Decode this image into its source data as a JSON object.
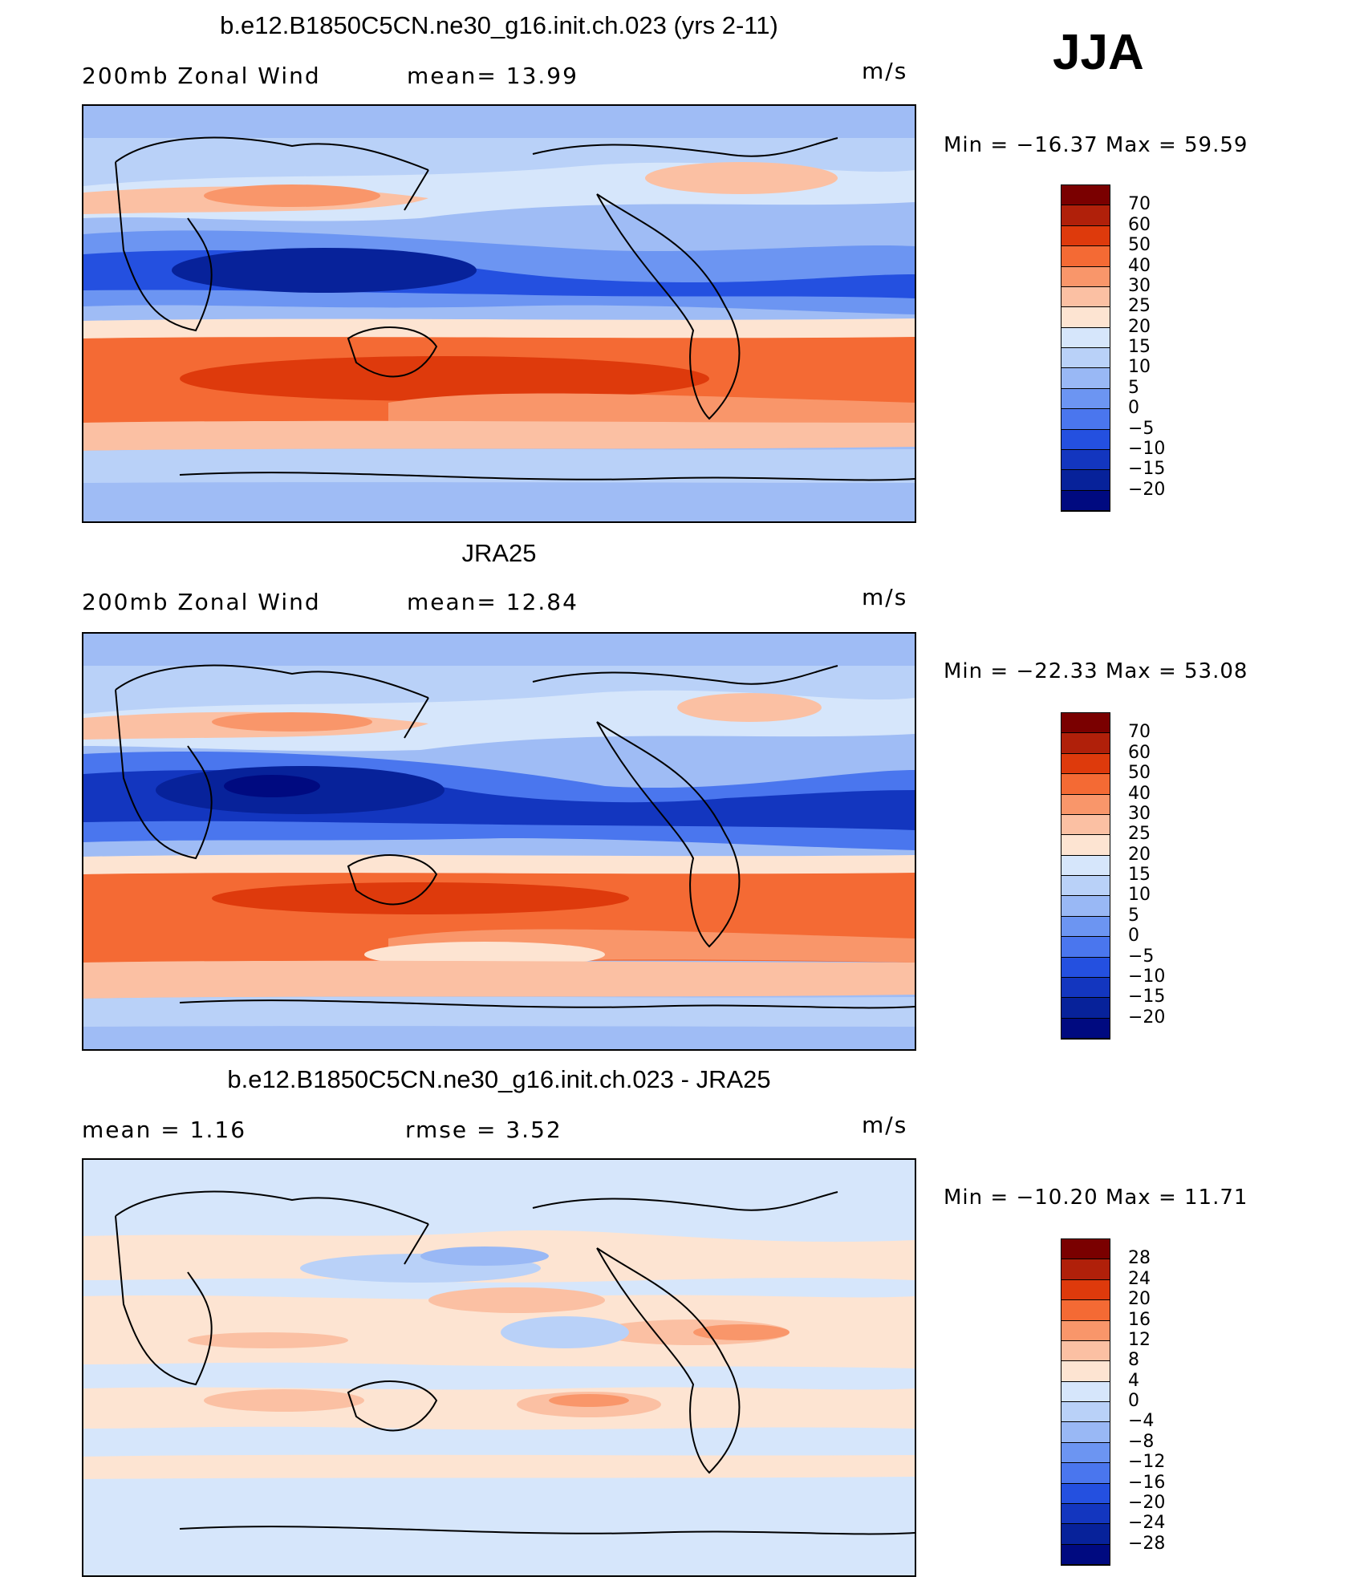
{
  "season": "JJA",
  "units": "m/s",
  "panels": [
    {
      "id": "model",
      "title": "b.e12.B1850C5CN.ne30_g16.init.ch.023 (yrs 2-11)",
      "left_label": "200mb  Zonal  Wind",
      "center_label": "mean=   13.99",
      "units": "m/s",
      "minmax": "Min  =  −16.37  Max  =    59.59"
    },
    {
      "id": "obs",
      "title": "JRA25",
      "left_label": "200mb  Zonal  Wind",
      "center_label": "mean=   12.84",
      "units": "m/s",
      "minmax": "Min  =  −22.33  Max  =    53.08"
    },
    {
      "id": "diff",
      "title": "b.e12.B1850C5CN.ne30_g16.init.ch.023 - JRA25",
      "left_label": "mean  =      1.16",
      "center_label": "rmse  =      3.52",
      "units": "m/s",
      "minmax": "Min  =  −10.20  Max  =    11.71"
    }
  ],
  "colorbars": {
    "field_labels": [
      "70",
      "60",
      "50",
      "40",
      "30",
      "25",
      "20",
      "15",
      "10",
      "5",
      "0",
      "−5",
      "−10",
      "−15",
      "−20"
    ],
    "diff_labels": [
      "28",
      "24",
      "20",
      "16",
      "12",
      "8",
      "4",
      "0",
      "−4",
      "−8",
      "−12",
      "−16",
      "−20",
      "−24",
      "−28"
    ],
    "colors": [
      "#7a0000",
      "#b0200a",
      "#de3a0c",
      "#f46a34",
      "#f9966a",
      "#fbc0a3",
      "#fde4d2",
      "#d6e6fb",
      "#b9d1f8",
      "#99b8f5",
      "#6c95f2",
      "#4a76ee",
      "#2450e0",
      "#1336bf",
      "#07229a",
      "#000a80"
    ]
  }
}
